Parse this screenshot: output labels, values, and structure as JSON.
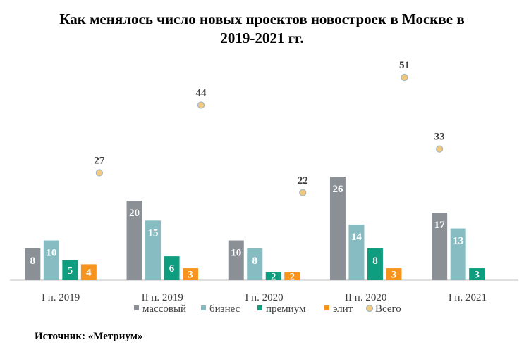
{
  "chart_data": {
    "type": "bar",
    "title_lines": [
      "Как менялось число новых проектов новостроек в Москве в",
      "2019-2021 гг."
    ],
    "categories": [
      "I п. 2019",
      "II п. 2019",
      "I п. 2020",
      "II п. 2020",
      "I п. 2021"
    ],
    "series": [
      {
        "name": "массовый",
        "color": "#8b9096",
        "values": [
          8,
          20,
          10,
          26,
          17
        ]
      },
      {
        "name": "бизнес",
        "color": "#86bcc2",
        "values": [
          10,
          15,
          8,
          14,
          13
        ]
      },
      {
        "name": "премиум",
        "color": "#0e9d7e",
        "values": [
          5,
          6,
          2,
          8,
          3
        ]
      },
      {
        "name": "элит",
        "color": "#f7941d",
        "values": [
          4,
          3,
          2,
          3,
          null
        ]
      }
    ],
    "total": {
      "name": "Всего",
      "type": "scatter",
      "values": [
        27,
        44,
        22,
        51,
        33
      ],
      "fill": "#f2c97f",
      "stroke": "#9fb8c5"
    },
    "ylim": [
      0,
      51
    ],
    "grid": false,
    "legend_position": "bottom",
    "source": "Источник: «Метриум»"
  }
}
